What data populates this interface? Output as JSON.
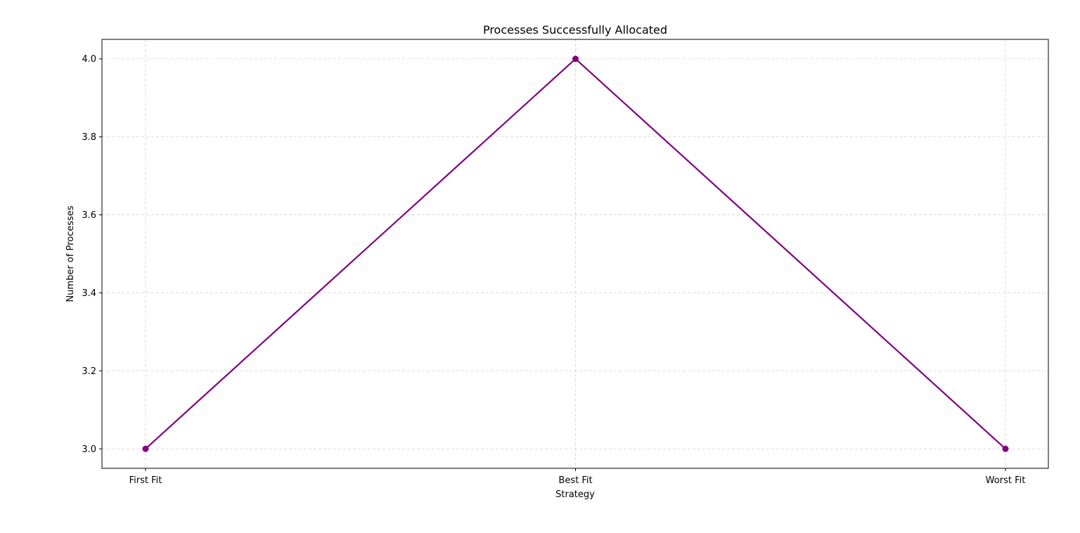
{
  "chart_data": {
    "type": "line",
    "title": "Processes Successfully Allocated",
    "xlabel": "Strategy",
    "ylabel": "Number of Processes",
    "categories": [
      "First Fit",
      "Best Fit",
      "Worst Fit"
    ],
    "series": [
      {
        "values": [
          3,
          4,
          3
        ],
        "color": "#800080",
        "marker": "circle"
      }
    ],
    "ylim": [
      2.95,
      4.05
    ],
    "yticks": [
      3.0,
      3.2,
      3.4,
      3.6,
      3.8,
      4.0
    ],
    "ytick_labels": [
      "3.0",
      "3.2",
      "3.4",
      "3.6",
      "3.8",
      "4.0"
    ],
    "grid": true,
    "grid_style": "dashed",
    "legend": "none"
  }
}
